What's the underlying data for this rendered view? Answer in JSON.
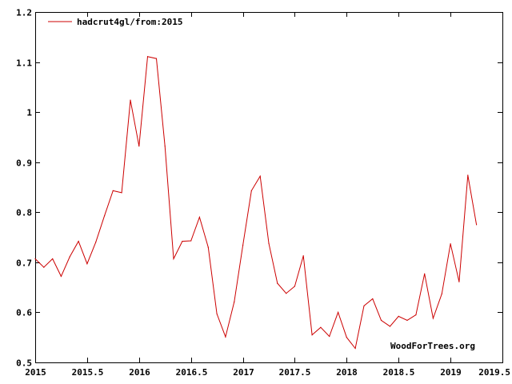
{
  "chart_data": {
    "type": "line",
    "title": "",
    "xlabel": "",
    "ylabel": "",
    "xlim": [
      2015,
      2019.5
    ],
    "ylim": [
      0.5,
      1.2
    ],
    "x_ticks": [
      2015,
      2015.5,
      2016,
      2016.5,
      2017,
      2017.5,
      2018,
      2018.5,
      2019,
      2019.5
    ],
    "x_tick_labels": [
      "2015",
      "2015.5",
      "2016",
      "2016.5",
      "2017",
      "2017.5",
      "2018",
      "2018.5",
      "2019",
      "2019.5"
    ],
    "y_ticks": [
      0.5,
      0.6,
      0.7,
      0.8,
      0.9,
      1.0,
      1.1,
      1.2
    ],
    "y_tick_labels": [
      "0.5",
      "0.6",
      "0.7",
      "0.8",
      "0.9",
      "1",
      "1.1",
      "1.2"
    ],
    "grid": false,
    "legend_position": "top-left",
    "series": [
      {
        "name": "hadcrut4gl/from:2015",
        "color": "#cc0000",
        "x": [
          2015.0,
          2015.083,
          2015.167,
          2015.25,
          2015.333,
          2015.417,
          2015.5,
          2015.583,
          2015.667,
          2015.75,
          2015.833,
          2015.917,
          2016.0,
          2016.083,
          2016.167,
          2016.25,
          2016.333,
          2016.417,
          2016.5,
          2016.583,
          2016.667,
          2016.75,
          2016.833,
          2016.917,
          2017.0,
          2017.083,
          2017.167,
          2017.25,
          2017.333,
          2017.417,
          2017.5,
          2017.583,
          2017.667,
          2017.75,
          2017.833,
          2017.917,
          2018.0,
          2018.083,
          2018.167,
          2018.25,
          2018.333,
          2018.417,
          2018.5,
          2018.583,
          2018.667,
          2018.75,
          2018.833,
          2018.917,
          2019.0,
          2019.083,
          2019.167,
          2019.25
        ],
        "values": [
          0.707,
          0.69,
          0.707,
          0.672,
          0.711,
          0.742,
          0.697,
          0.74,
          0.793,
          0.843,
          0.839,
          1.024,
          0.932,
          1.111,
          1.107,
          0.932,
          0.707,
          0.742,
          0.743,
          0.79,
          0.73,
          0.597,
          0.551,
          0.621,
          0.734,
          0.843,
          0.872,
          0.738,
          0.658,
          0.638,
          0.652,
          0.713,
          0.555,
          0.57,
          0.552,
          0.6,
          0.55,
          0.528,
          0.613,
          0.627,
          0.584,
          0.572,
          0.592,
          0.584,
          0.595,
          0.677,
          0.588,
          0.637,
          0.737,
          0.661,
          0.874,
          0.775
        ]
      }
    ],
    "annotations": [
      "WoodForTrees.org"
    ],
    "colors": {
      "axis": "#000000",
      "series": "#cc0000",
      "background": "#ffffff"
    }
  }
}
